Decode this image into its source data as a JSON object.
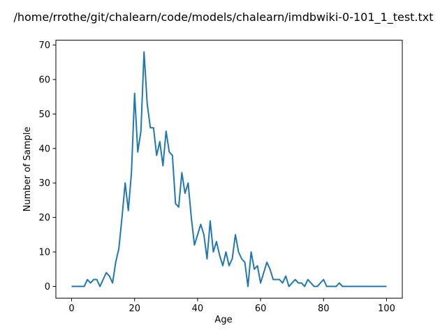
{
  "chart_data": {
    "type": "line",
    "title": "/home/rrothe/git/chalearn/code/models/chalearn/imdbwiki-0-101_1_test.txt",
    "xlabel": "Age",
    "ylabel": "Number of Sample",
    "xlim": [
      -5,
      105
    ],
    "ylim": [
      -3.4,
      71.4
    ],
    "xticks": [
      0,
      20,
      40,
      60,
      80,
      100
    ],
    "yticks": [
      0,
      10,
      20,
      30,
      40,
      50,
      60,
      70
    ],
    "grid": false,
    "line_color": "#1f77b4",
    "series": [
      {
        "x": [
          0,
          1,
          2,
          3,
          4,
          5,
          6,
          7,
          8,
          9,
          10,
          11,
          12,
          13,
          14,
          15,
          16,
          17,
          18,
          19,
          20,
          21,
          22,
          23,
          24,
          25,
          26,
          27,
          28,
          29,
          30,
          31,
          32,
          33,
          34,
          35,
          36,
          37,
          38,
          39,
          40,
          41,
          42,
          43,
          44,
          45,
          46,
          47,
          48,
          49,
          50,
          51,
          52,
          53,
          54,
          55,
          56,
          57,
          58,
          59,
          60,
          61,
          62,
          63,
          64,
          65,
          66,
          67,
          68,
          69,
          70,
          71,
          72,
          73,
          74,
          75,
          76,
          77,
          78,
          79,
          80,
          81,
          82,
          83,
          84,
          85,
          86,
          87,
          88,
          89,
          90,
          91,
          92,
          93,
          94,
          95,
          96,
          97,
          98,
          99,
          100
        ],
        "values": [
          0,
          0,
          0,
          0,
          0,
          2,
          1,
          2,
          2,
          0,
          2,
          4,
          3,
          1,
          7,
          11,
          20,
          30,
          22,
          33,
          56,
          39,
          45,
          68,
          53,
          46,
          46,
          38,
          42,
          35,
          45,
          39,
          38,
          24,
          23,
          33,
          27,
          30,
          20,
          12,
          15,
          18,
          15,
          8,
          19,
          10,
          13,
          9,
          6,
          10,
          6,
          8,
          15,
          10,
          8,
          7,
          0,
          10,
          5,
          6,
          1,
          4,
          7,
          5,
          2,
          2,
          2,
          1,
          3,
          0,
          1,
          2,
          1,
          1,
          0,
          2,
          1,
          0,
          0,
          1,
          2,
          0,
          0,
          0,
          0,
          1,
          0,
          0,
          0,
          0,
          0,
          0,
          0,
          0,
          0,
          0,
          0,
          0,
          0,
          0,
          0
        ]
      }
    ]
  }
}
